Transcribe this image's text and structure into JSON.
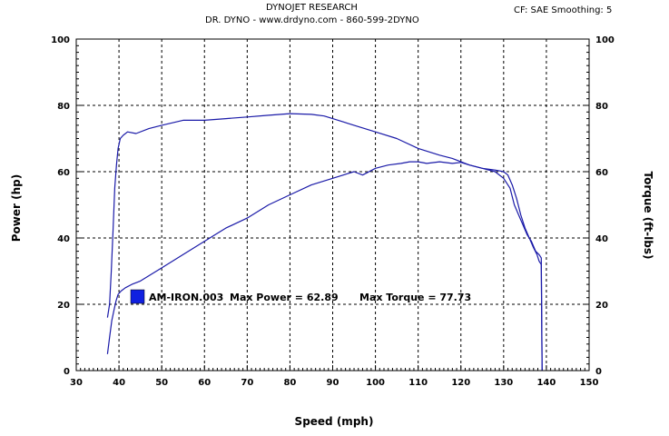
{
  "header": {
    "title": "DYNOJET RESEARCH",
    "subtitle": "DR. DYNO - www.drdyno.com - 860-599-2DYNO",
    "settings": "CF: SAE  Smoothing: 5"
  },
  "colors": {
    "series": "#1a1aa8",
    "legend_swatch": "#1020e0",
    "grid": "#000000",
    "plot_background": "#ffffff"
  },
  "chart_data": {
    "type": "line",
    "xlabel": "Speed (mph)",
    "ylabel": "Power (hp)",
    "y2label": "Torque (ft-lbs)",
    "xlim": [
      30,
      150
    ],
    "ylim": [
      0,
      100
    ],
    "y2lim": [
      0,
      100
    ],
    "grid": true,
    "xticks": [
      "30",
      "40",
      "50",
      "60",
      "70",
      "80",
      "90",
      "100",
      "110",
      "120",
      "130",
      "140",
      "150"
    ],
    "yticks": [
      "0",
      "20",
      "40",
      "60",
      "80",
      "100"
    ],
    "y2ticks": [
      "0",
      "20",
      "40",
      "60",
      "80",
      "100"
    ],
    "legend": {
      "label": "AM-IRON.003",
      "max_power_text": "Max Power = 62.89",
      "max_torque_text": "Max Torque = 77.73"
    },
    "series": [
      {
        "name": "Power",
        "axis": "left",
        "x": [
          37.3,
          37.8,
          38.3,
          38.8,
          39.3,
          39.8,
          40.5,
          41.5,
          43,
          45,
          50,
          55,
          60,
          65,
          70,
          75,
          80,
          85,
          90,
          95,
          97,
          100,
          103,
          106,
          108,
          110,
          112,
          115,
          118,
          120,
          122,
          125,
          128,
          130,
          131.5,
          132.5,
          133.5,
          134.5,
          135.5,
          136.5,
          137.5,
          138.3,
          138.8,
          139
        ],
        "y": [
          5,
          10,
          15,
          18,
          21,
          23,
          24,
          25,
          26,
          27,
          31,
          35,
          39,
          43,
          46,
          50,
          53,
          56,
          58,
          60,
          59,
          61,
          62,
          62.5,
          63,
          63,
          62.5,
          63,
          62.5,
          62.8,
          62,
          61,
          60,
          58,
          55,
          50,
          47,
          44,
          41,
          39,
          36,
          35,
          34,
          0
        ]
      },
      {
        "name": "Torque",
        "axis": "right",
        "x": [
          37.3,
          37.8,
          38.2,
          38.6,
          39,
          39.4,
          39.8,
          40.3,
          41,
          42,
          44,
          47,
          50,
          55,
          60,
          65,
          70,
          75,
          80,
          85,
          88,
          90,
          95,
          100,
          105,
          110,
          115,
          118,
          120,
          122,
          125,
          128,
          130,
          131,
          132,
          133,
          134,
          135,
          136,
          137,
          137.8,
          138.3,
          138.8,
          139
        ],
        "y": [
          16,
          20,
          30,
          42,
          55,
          62,
          67,
          70,
          71,
          72,
          71.5,
          73,
          74,
          75.5,
          75.5,
          76,
          76.5,
          77,
          77.5,
          77.3,
          76.8,
          76,
          74,
          72,
          70,
          67,
          65,
          64,
          63,
          62,
          61,
          60.5,
          60,
          59,
          56,
          52,
          47,
          43,
          40,
          37,
          35,
          33,
          32,
          0
        ]
      }
    ]
  }
}
